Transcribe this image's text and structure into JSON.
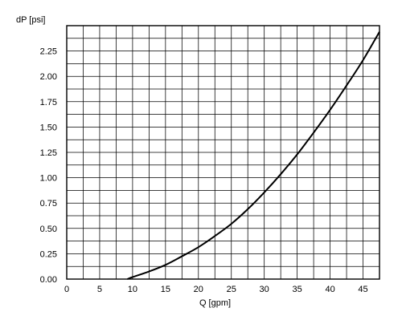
{
  "chart_data": {
    "type": "line",
    "xlabel": "Q [gpm]",
    "ylabel": "dP [psi]",
    "xlim": [
      0,
      47.5
    ],
    "ylim": [
      0,
      2.5
    ],
    "x_ticks": [
      0,
      5,
      10,
      15,
      20,
      25,
      30,
      35,
      40,
      45
    ],
    "x_tick_labels": [
      "0",
      "5",
      "10",
      "15",
      "20",
      "25",
      "30",
      "35",
      "40",
      "45"
    ],
    "y_ticks": [
      0,
      0.25,
      0.5,
      0.75,
      1.0,
      1.25,
      1.5,
      1.75,
      2.0,
      2.25
    ],
    "y_tick_labels": [
      "0.00",
      "0.25",
      "0.50",
      "0.75",
      "1.00",
      "1.25",
      "1.50",
      "1.75",
      "2.00",
      "2.25"
    ],
    "x_minor_step": 2.5,
    "y_minor_step": 0.125,
    "grid": true,
    "series": [
      {
        "color": "#000000",
        "x": [
          9.2,
          10,
          12.5,
          15,
          17.5,
          20,
          22.5,
          25,
          27.5,
          30,
          32.5,
          35,
          37.5,
          40,
          42.5,
          45,
          47.5
        ],
        "y": [
          0.0,
          0.02,
          0.075,
          0.14,
          0.225,
          0.315,
          0.425,
          0.545,
          0.69,
          0.855,
          1.035,
          1.23,
          1.445,
          1.67,
          1.91,
          2.16,
          2.44
        ]
      }
    ]
  }
}
